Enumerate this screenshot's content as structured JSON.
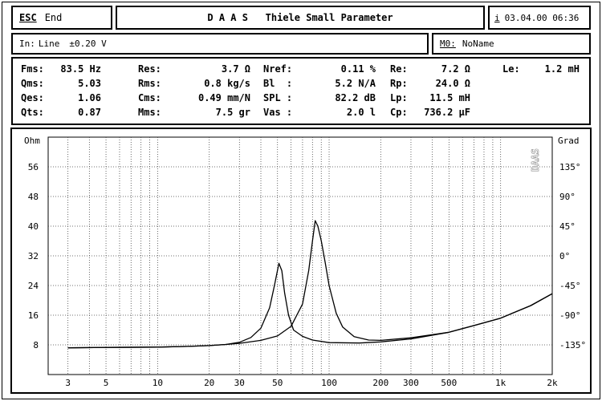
{
  "header": {
    "esc_label": "ESC",
    "end_label": "End",
    "title": "D A A S   Thiele Small Parameter",
    "info_icon_label": "i",
    "datetime": "03.04.00 06:36"
  },
  "input_bar": {
    "input_label": "In:",
    "input_value": "Line",
    "range_value": "±0.20 V",
    "memory_label": "M0:",
    "memory_value": "NoName"
  },
  "parameters": [
    [
      {
        "label": "Fms:",
        "value": "83.5 Hz"
      },
      {
        "label": "Res:",
        "value": "3.7 Ω"
      },
      {
        "label": "Nref:",
        "value": "0.11 %"
      },
      {
        "label": "Re:",
        "value": "7.2 Ω"
      },
      {
        "label": "Le:",
        "value": "1.2 mH"
      }
    ],
    [
      {
        "label": "Qms:",
        "value": "5.03"
      },
      {
        "label": "Rms:",
        "value": "0.8 kg/s"
      },
      {
        "label": "Bl  :",
        "value": "5.2 N/A"
      },
      {
        "label": "Rp:",
        "value": "24.0 Ω"
      }
    ],
    [
      {
        "label": "Qes:",
        "value": "1.06"
      },
      {
        "label": "Cms:",
        "value": "0.49 mm/N"
      },
      {
        "label": "SPL :",
        "value": "82.2 dB"
      },
      {
        "label": "Lp:",
        "value": "11.5 mH"
      }
    ],
    [
      {
        "label": "Qts:",
        "value": "0.87"
      },
      {
        "label": "Mms:",
        "value": "7.5 gr"
      },
      {
        "label": "Vas :",
        "value": "2.0 l"
      },
      {
        "label": "Cp:",
        "value": "736.2 µF"
      }
    ]
  ],
  "chart_data": {
    "type": "line",
    "left_unit_label": "Ohm",
    "right_unit_label": "Grad",
    "watermark": "DAAS",
    "x_scale": "log",
    "xlim": [
      2.3,
      2000
    ],
    "x_ticks": [
      {
        "v": 3,
        "t": "3"
      },
      {
        "v": 5,
        "t": "5"
      },
      {
        "v": 10,
        "t": "10"
      },
      {
        "v": 20,
        "t": "20"
      },
      {
        "v": 30,
        "t": "30"
      },
      {
        "v": 50,
        "t": "50"
      },
      {
        "v": 100,
        "t": "100"
      },
      {
        "v": 200,
        "t": "200"
      },
      {
        "v": 300,
        "t": "300"
      },
      {
        "v": 500,
        "t": "500"
      },
      {
        "v": 1000,
        "t": "1k"
      },
      {
        "v": 2000,
        "t": "2k"
      }
    ],
    "ylim": [
      0,
      64
    ],
    "y_ticks": [
      {
        "v": 8,
        "t": "8"
      },
      {
        "v": 16,
        "t": "16"
      },
      {
        "v": 24,
        "t": "24"
      },
      {
        "v": 32,
        "t": "32"
      },
      {
        "v": 40,
        "t": "40"
      },
      {
        "v": 48,
        "t": "48"
      },
      {
        "v": 56,
        "t": "56"
      }
    ],
    "y2_ticks": [
      {
        "v": 56,
        "t": "135°"
      },
      {
        "v": 48,
        "t": "90°"
      },
      {
        "v": 40,
        "t": "45°"
      },
      {
        "v": 32,
        "t": "0°"
      },
      {
        "v": 24,
        "t": "-45°"
      },
      {
        "v": 16,
        "t": "-90°"
      },
      {
        "v": 8,
        "t": "-135°"
      }
    ],
    "grid": true,
    "series": [
      {
        "x": [
          3,
          5,
          10,
          15,
          20,
          25,
          30,
          35,
          40,
          45,
          48,
          51,
          53,
          55,
          58,
          62,
          70,
          80,
          100,
          150,
          200,
          300,
          500,
          700,
          1000,
          1500,
          2000
        ],
        "values": [
          7.2,
          7.3,
          7.4,
          7.6,
          7.8,
          8.1,
          8.7,
          10,
          12.5,
          18,
          24,
          30,
          28,
          22,
          16,
          12,
          10.3,
          9.3,
          8.6,
          8.5,
          8.8,
          9.6,
          11.4,
          13.2,
          15.2,
          18.6,
          21.8
        ]
      },
      {
        "x": [
          3,
          5,
          10,
          15,
          20,
          25,
          30,
          40,
          50,
          60,
          70,
          76,
          80,
          83,
          86,
          90,
          95,
          100,
          110,
          120,
          140,
          170,
          200,
          300,
          500,
          700,
          1000,
          1500,
          2000
        ],
        "values": [
          7.2,
          7.3,
          7.4,
          7.6,
          7.8,
          8.1,
          8.4,
          9.2,
          10.4,
          13,
          19,
          28,
          36,
          41.5,
          40,
          36,
          30,
          24,
          16.5,
          12.8,
          10.2,
          9.3,
          9.2,
          9.9,
          11.4,
          13.2,
          15.2,
          18.6,
          21.8
        ]
      }
    ]
  }
}
